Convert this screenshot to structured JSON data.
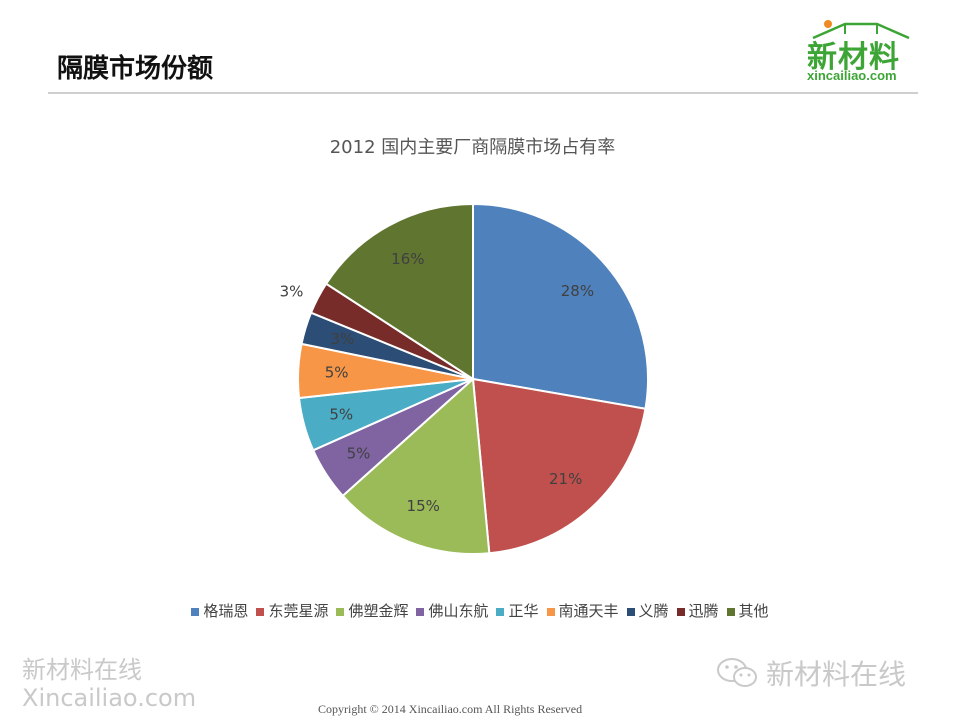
{
  "header": {
    "title": "隔膜市场份额",
    "logo_main": "新材料",
    "logo_sub": "xincailiao.com"
  },
  "chart_data": {
    "type": "pie",
    "title": "2012 国内主要厂商隔膜市场占有率",
    "legend_position": "bottom",
    "categories": [
      "格瑞恩",
      "东莞星源",
      "佛塑金辉",
      "佛山东航",
      "正华",
      "南通天丰",
      "义腾",
      "迅腾",
      "其他"
    ],
    "values": [
      28,
      21,
      15,
      5,
      5,
      5,
      3,
      3,
      16
    ],
    "labels": [
      "28%",
      "21%",
      "15%",
      "5%",
      "5%",
      "5%",
      "3%",
      "3%",
      "16%"
    ],
    "colors": [
      "#4f81bd",
      "#c0504d",
      "#9bbb59",
      "#8064a2",
      "#4bacc6",
      "#f79646",
      "#2c4d75",
      "#772c2a",
      "#5f7530"
    ]
  },
  "watermark": {
    "left_line1": "新材料在线",
    "left_line2": "Xincailiao.com",
    "right_text": "新材料在线"
  },
  "footer": {
    "copyright": "Copyright © 2014   Xincailiao.com    All Rights Reserved"
  }
}
